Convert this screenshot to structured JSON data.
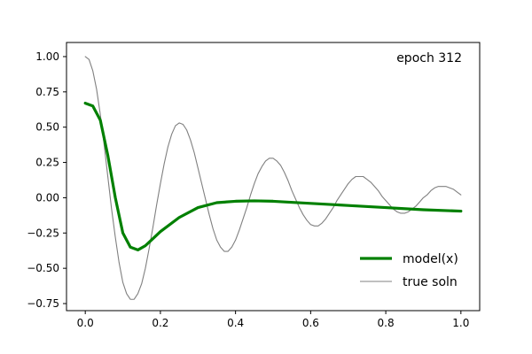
{
  "chart_data": {
    "type": "line",
    "title": "",
    "xlabel": "",
    "ylabel": "",
    "xlim": [
      -0.05,
      1.05
    ],
    "ylim": [
      -0.8,
      1.1
    ],
    "grid": false,
    "legend_position": "lower-right",
    "annotation": "epoch 312",
    "x_ticks": [
      {
        "value": 0.0,
        "label": "0.0"
      },
      {
        "value": 0.2,
        "label": "0.2"
      },
      {
        "value": 0.4,
        "label": "0.4"
      },
      {
        "value": 0.6,
        "label": "0.6"
      },
      {
        "value": 0.8,
        "label": "0.8"
      },
      {
        "value": 1.0,
        "label": "1.0"
      }
    ],
    "y_ticks": [
      {
        "value": 1.0,
        "label": "1.00"
      },
      {
        "value": 0.75,
        "label": "0.75"
      },
      {
        "value": 0.5,
        "label": "0.50"
      },
      {
        "value": 0.25,
        "label": "0.25"
      },
      {
        "value": 0.0,
        "label": "0.00"
      },
      {
        "value": -0.25,
        "label": "−0.25"
      },
      {
        "value": -0.5,
        "label": "−0.50"
      },
      {
        "value": -0.75,
        "label": "−0.75"
      }
    ],
    "series": [
      {
        "name": "model(x)",
        "color": "#008000",
        "x": [
          0.0,
          0.02,
          0.04,
          0.06,
          0.08,
          0.1,
          0.12,
          0.14,
          0.16,
          0.18,
          0.2,
          0.25,
          0.3,
          0.35,
          0.4,
          0.45,
          0.5,
          0.6,
          0.7,
          0.8,
          0.9,
          1.0
        ],
        "y": [
          0.67,
          0.65,
          0.55,
          0.3,
          0.0,
          -0.25,
          -0.35,
          -0.37,
          -0.34,
          -0.29,
          -0.24,
          -0.14,
          -0.07,
          -0.035,
          -0.025,
          -0.022,
          -0.025,
          -0.04,
          -0.055,
          -0.07,
          -0.085,
          -0.095
        ]
      },
      {
        "name": "true soln",
        "color": "#808080",
        "x": [
          0.0,
          0.01,
          0.02,
          0.03,
          0.04,
          0.05,
          0.06,
          0.07,
          0.08,
          0.09,
          0.1,
          0.11,
          0.12,
          0.13,
          0.14,
          0.15,
          0.16,
          0.17,
          0.18,
          0.19,
          0.2,
          0.21,
          0.22,
          0.23,
          0.24,
          0.25,
          0.26,
          0.27,
          0.28,
          0.29,
          0.3,
          0.31,
          0.32,
          0.33,
          0.34,
          0.35,
          0.36,
          0.37,
          0.38,
          0.39,
          0.4,
          0.41,
          0.42,
          0.43,
          0.44,
          0.45,
          0.46,
          0.47,
          0.48,
          0.49,
          0.5,
          0.51,
          0.52,
          0.53,
          0.54,
          0.55,
          0.56,
          0.57,
          0.58,
          0.59,
          0.6,
          0.61,
          0.62,
          0.63,
          0.64,
          0.65,
          0.66,
          0.67,
          0.68,
          0.69,
          0.7,
          0.71,
          0.72,
          0.73,
          0.74,
          0.75,
          0.76,
          0.77,
          0.78,
          0.79,
          0.8,
          0.81,
          0.82,
          0.83,
          0.84,
          0.85,
          0.86,
          0.87,
          0.88,
          0.89,
          0.9,
          0.91,
          0.92,
          0.93,
          0.94,
          0.95,
          0.96,
          0.97,
          0.98,
          0.99,
          1.0
        ],
        "y": [
          1.0,
          0.98,
          0.9,
          0.77,
          0.59,
          0.38,
          0.15,
          -0.08,
          -0.28,
          -0.46,
          -0.6,
          -0.68,
          -0.72,
          -0.72,
          -0.68,
          -0.61,
          -0.5,
          -0.36,
          -0.21,
          -0.05,
          0.1,
          0.24,
          0.36,
          0.45,
          0.51,
          0.53,
          0.52,
          0.48,
          0.41,
          0.32,
          0.21,
          0.1,
          -0.01,
          -0.12,
          -0.22,
          -0.3,
          -0.35,
          -0.38,
          -0.38,
          -0.35,
          -0.3,
          -0.23,
          -0.15,
          -0.07,
          0.02,
          0.1,
          0.17,
          0.22,
          0.26,
          0.28,
          0.28,
          0.26,
          0.23,
          0.18,
          0.12,
          0.05,
          -0.01,
          -0.07,
          -0.12,
          -0.16,
          -0.19,
          -0.2,
          -0.2,
          -0.18,
          -0.15,
          -0.11,
          -0.07,
          -0.02,
          0.02,
          0.06,
          0.1,
          0.13,
          0.15,
          0.15,
          0.15,
          0.13,
          0.11,
          0.08,
          0.05,
          0.01,
          -0.02,
          -0.05,
          -0.08,
          -0.1,
          -0.11,
          -0.11,
          -0.1,
          -0.08,
          -0.06,
          -0.03,
          0.0,
          0.02,
          0.05,
          0.07,
          0.08,
          0.08,
          0.08,
          0.07,
          0.06,
          0.04,
          0.02
        ]
      }
    ]
  }
}
